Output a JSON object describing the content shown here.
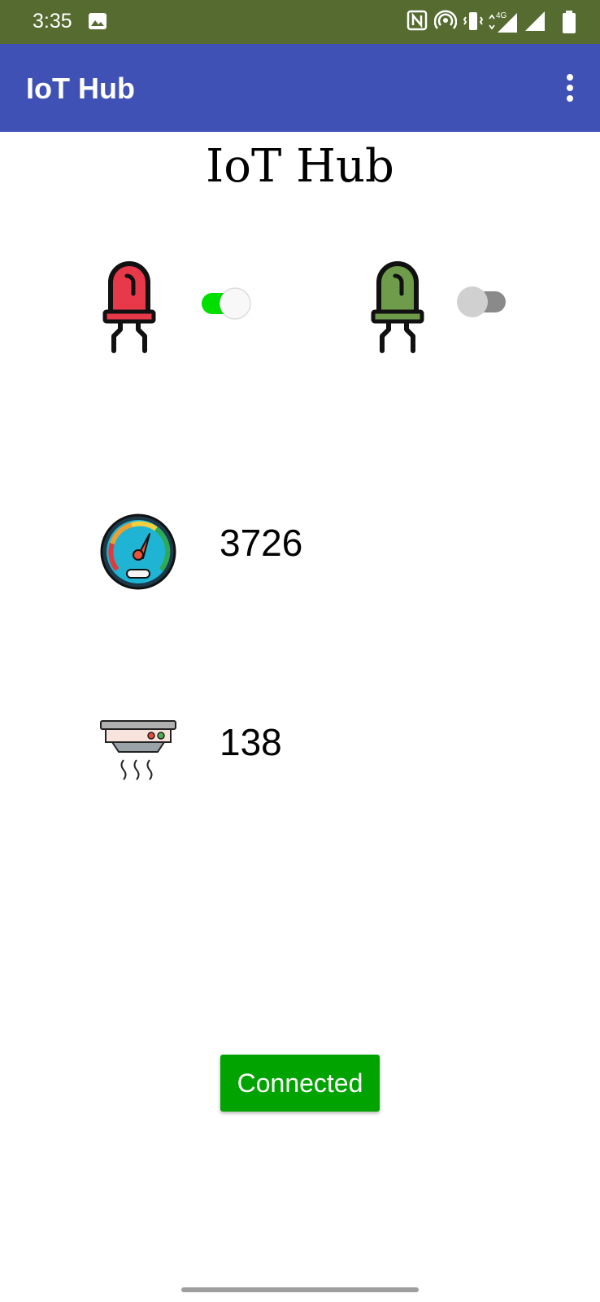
{
  "status_bar": {
    "time": "3:35",
    "network_label": "4G"
  },
  "app_bar": {
    "title": "IoT Hub",
    "menu_icon": "more-vert-icon"
  },
  "heading": "IoT Hub",
  "leds": [
    {
      "icon": "red-led-icon",
      "color": "#e8394a",
      "switch_on": true
    },
    {
      "icon": "green-led-icon",
      "color": "#6e9c4b",
      "switch_on": false
    }
  ],
  "sensors": {
    "gauge": {
      "icon": "speedometer-icon",
      "value": "3726"
    },
    "smoke": {
      "icon": "smoke-detector-icon",
      "value": "138"
    }
  },
  "connect_button": {
    "label": "Connected",
    "color": "#00a300"
  },
  "colors": {
    "status_bar": "#556b2f",
    "app_bar": "#3f51b5",
    "switch_on": "#00e000"
  }
}
